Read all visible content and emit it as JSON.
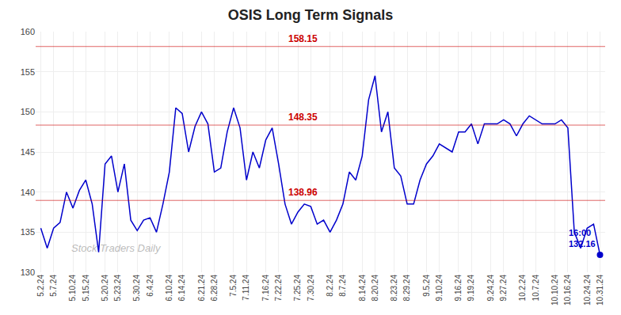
{
  "chart_data": {
    "type": "line",
    "title": "OSIS Long Term Signals",
    "watermark": "Stock Traders Daily",
    "categories": [
      "5.2.24",
      null,
      "5.7.24",
      null,
      null,
      "5.10.24",
      null,
      "5.15.24",
      null,
      null,
      "5.20.24",
      null,
      "5.23.24",
      null,
      null,
      "5.30.24",
      null,
      "6.4.24",
      null,
      null,
      "6.10.24",
      null,
      "6.14.24",
      null,
      null,
      "6.21.24",
      null,
      "6.28.24",
      null,
      null,
      "7.5.24",
      null,
      "7.11.24",
      null,
      null,
      "7.16.24",
      null,
      "7.22.24",
      null,
      null,
      "7.25.24",
      null,
      "7.30.24",
      null,
      null,
      "8.2.24",
      null,
      "8.7.24",
      null,
      null,
      "8.14.24",
      null,
      "8.20.24",
      null,
      null,
      "8.23.24",
      null,
      "8.29.24",
      null,
      null,
      "9.5.24",
      null,
      "9.10.24",
      null,
      null,
      "9.16.24",
      null,
      "9.19.24",
      null,
      null,
      "9.24.24",
      null,
      "9.27.24",
      null,
      null,
      "10.2.24",
      null,
      "10.7.24",
      null,
      null,
      "10.10.24",
      null,
      "10.16.24",
      null,
      null,
      "10.24.24",
      null,
      "10.31.24"
    ],
    "values": [
      135.5,
      133.0,
      135.5,
      136.2,
      140.0,
      138.0,
      140.2,
      141.5,
      138.5,
      132.5,
      143.5,
      144.5,
      140.0,
      143.5,
      136.5,
      135.2,
      136.5,
      136.8,
      135.0,
      138.5,
      142.5,
      150.5,
      149.8,
      145.0,
      148.2,
      150.0,
      148.5,
      142.5,
      143.0,
      147.5,
      150.5,
      148.0,
      141.5,
      145.0,
      143.0,
      146.5,
      148.0,
      143.5,
      138.5,
      136.0,
      137.5,
      138.5,
      138.2,
      136.0,
      136.5,
      135.0,
      136.5,
      138.5,
      142.5,
      141.5,
      144.5,
      151.5,
      154.5,
      147.5,
      150.0,
      143.0,
      142.0,
      138.5,
      138.5,
      141.5,
      143.5,
      144.5,
      146.0,
      145.5,
      145.0,
      147.5,
      147.5,
      148.5,
      146.0,
      148.5,
      148.5,
      148.5,
      149.0,
      148.5,
      147.0,
      148.5,
      149.5,
      149.0,
      148.5,
      148.5,
      148.5,
      149.0,
      148.0,
      135.0,
      133.0,
      135.5,
      136.0,
      132.16
    ],
    "color": "#0000cc",
    "hlines": [
      {
        "y": 158.15,
        "label": "158.15",
        "color": "#cc0000"
      },
      {
        "y": 148.35,
        "label": "148.35",
        "color": "#cc0000"
      },
      {
        "y": 138.96,
        "label": "138.96",
        "color": "#cc0000"
      }
    ],
    "annotations": [
      {
        "text": "16:00\n132.16",
        "color": "#0000cc"
      }
    ],
    "ylim": [
      130,
      160
    ],
    "yticks": [
      130,
      135,
      140,
      145,
      150,
      155,
      160
    ],
    "grid": true
  }
}
